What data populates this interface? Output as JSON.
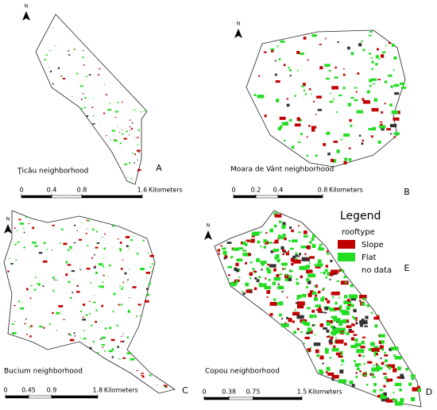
{
  "panels": [
    {
      "name": "Ţicău neighborhood",
      "letter": "A",
      "north": "N",
      "scale": {
        "ticks": [
          0,
          0.4,
          0.8,
          1.6
        ],
        "unit": "Kilometers"
      }
    },
    {
      "name": "Moara de Vânt neighborhood",
      "letter": "B",
      "north": "N",
      "scale": {
        "ticks": [
          0,
          0.2,
          0.4,
          0.8
        ],
        "unit": "Kilometers"
      }
    },
    {
      "name": "Bucium neighborhood",
      "letter": "C",
      "north": "N",
      "scale": {
        "ticks": [
          0,
          0.45,
          0.9,
          1.8
        ],
        "unit": "Kilometers"
      }
    },
    {
      "name": "Copou neighborhood",
      "letter": "D",
      "north": "N",
      "scale": {
        "ticks": [
          0,
          0.38,
          0.75,
          1.5
        ],
        "unit": "Kilometers"
      }
    }
  ],
  "legend": {
    "title": "Legend",
    "field": "rooftype",
    "letter": "E",
    "items": [
      {
        "label": "Slope",
        "color": "#c00000"
      },
      {
        "label": "Flat",
        "color": "#22dd22"
      },
      {
        "label": "no data"
      }
    ]
  }
}
